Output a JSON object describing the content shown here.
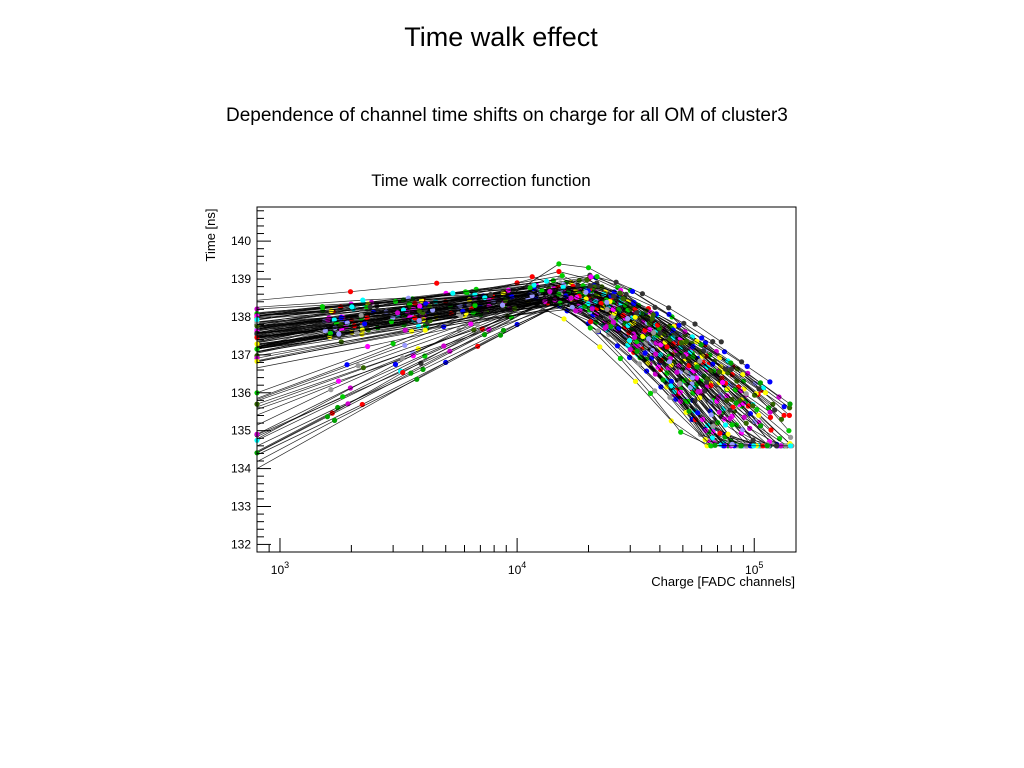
{
  "slide": {
    "title": "Time walk effect",
    "subtitle": "Dependence of channel time shifts on charge for all OM of cluster3"
  },
  "chart_data": {
    "type": "line",
    "title": "Time walk correction function",
    "xlabel": "Charge [FADC channels]",
    "ylabel": "Time [ns]",
    "xscale": "log",
    "xlim": [
      800,
      150000
    ],
    "ylim": [
      131.8,
      140.9
    ],
    "xticks": [
      {
        "base": "10",
        "exp": "3",
        "value": 1000
      },
      {
        "base": "10",
        "exp": "4",
        "value": 10000
      },
      {
        "base": "10",
        "exp": "5",
        "value": 100000
      }
    ],
    "yticks": [
      "132",
      "133",
      "134",
      "135",
      "136",
      "137",
      "138",
      "139",
      "140"
    ],
    "grid": false,
    "legend": "none",
    "n_series": 120,
    "description": "One polyline per optical module: time rises slowly with charge up to ~1.5e4 FADC channels, then falls steeply; markers in ROOT default colors",
    "representative_series": [
      {
        "x": [
          800,
          2000,
          5000,
          10000,
          15000,
          20000,
          30000,
          45000,
          60000,
          70000
        ],
        "y": [
          137.2,
          137.9,
          138.4,
          138.9,
          139.2,
          139.0,
          138.1,
          137.0,
          136.0,
          135.2
        ]
      },
      {
        "x": [
          800,
          3000,
          9000,
          15000,
          20000,
          30000,
          45000,
          65000,
          90000,
          115000,
          140000
        ],
        "y": [
          136.0,
          137.3,
          138.5,
          139.4,
          139.3,
          138.7,
          138.0,
          137.0,
          136.3,
          135.6,
          135.0
        ]
      },
      {
        "x": [
          800,
          5000,
          10000,
          17000,
          25000,
          30000,
          40000,
          55000,
          75000
        ],
        "y": [
          134.0,
          136.8,
          137.8,
          138.5,
          138.2,
          137.8,
          136.8,
          135.8,
          134.9
        ]
      }
    ],
    "marker_colors": [
      "#ff0000",
      "#00cc00",
      "#0000ff",
      "#ffff00",
      "#ff00ff",
      "#00ffff",
      "#999999",
      "#333333",
      "#336600",
      "#9999ff",
      "#00a000",
      "#cc00cc"
    ]
  }
}
